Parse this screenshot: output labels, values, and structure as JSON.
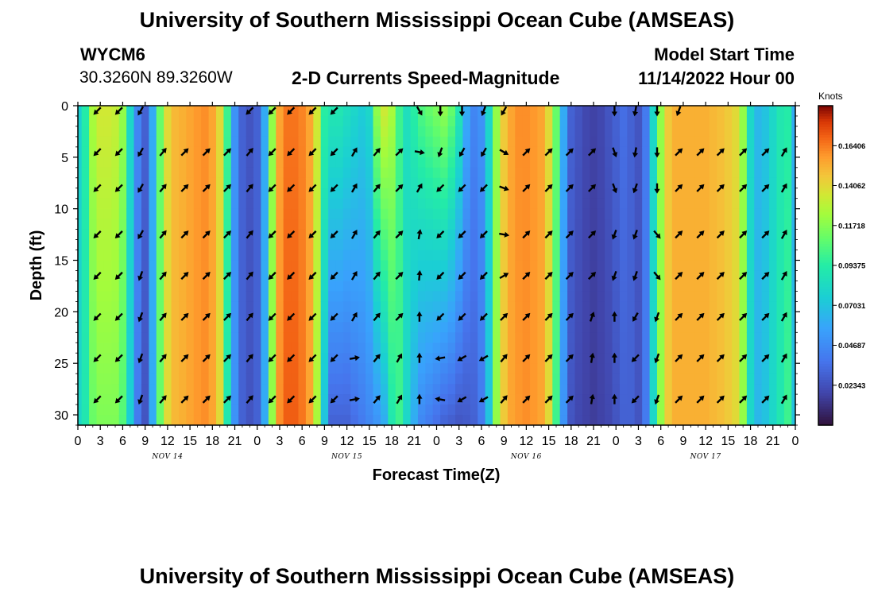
{
  "header": {
    "title": "University of Southern Mississippi Ocean Cube (AMSEAS)",
    "station_id": "WYCM6",
    "coordinates": "30.3260N  89.3260W",
    "plot_title": "2-D Currents Speed-Magnitude",
    "model_start_label": "Model Start Time",
    "model_start_value": "11/14/2022 Hour 00"
  },
  "footer": {
    "title": "University of Southern Mississippi Ocean Cube (AMSEAS)"
  },
  "chart_data": {
    "type": "heatmap",
    "title": "2-D Currents Speed-Magnitude",
    "xlabel": "Forecast Time(Z)",
    "ylabel": "Depth (ft)",
    "x_tick_labels": [
      "0",
      "3",
      "6",
      "9",
      "12",
      "15",
      "18",
      "21",
      "0",
      "3",
      "6",
      "9",
      "12",
      "15",
      "18",
      "21",
      "0",
      "3",
      "6",
      "9",
      "12",
      "15",
      "18",
      "21",
      "0",
      "3",
      "6",
      "9",
      "12",
      "15",
      "18",
      "21",
      "0"
    ],
    "x_range_hours": [
      0,
      96
    ],
    "date_labels": [
      {
        "label": "NOV 14",
        "hour": 12
      },
      {
        "label": "NOV 15",
        "hour": 36
      },
      {
        "label": "NOV 16",
        "hour": 60
      },
      {
        "label": "NOV 17",
        "hour": 84
      }
    ],
    "y_ticks": [
      0,
      5,
      10,
      15,
      20,
      25,
      30
    ],
    "y_tick_labels": [
      "0",
      "5",
      "10",
      "15",
      "20",
      "25",
      "30"
    ],
    "ylim": [
      0,
      31
    ],
    "y_inverted": true,
    "colorbar": {
      "title": "Knots",
      "vmin": 0.0,
      "vmax": 0.1875,
      "tick_values": [
        0.02343,
        0.04687,
        0.07031,
        0.09375,
        0.11718,
        0.14062,
        0.164
      ],
      "tick_labels": [
        "0.02343",
        "0.04687",
        "0.07031",
        "0.09375",
        "0.11718",
        "0.14062",
        "0.16406"
      ]
    },
    "speed_profile": {
      "description": "current speed (knots) at surface and at bottom, per forecast hour",
      "hours": [
        0,
        1,
        2,
        3,
        4,
        5,
        6,
        7,
        8,
        9,
        10,
        11,
        12,
        13,
        14,
        15,
        16,
        17,
        18,
        19,
        20,
        21,
        22,
        23,
        24,
        25,
        26,
        27,
        28,
        29,
        30,
        31,
        32,
        33,
        34,
        35,
        36,
        37,
        38,
        39,
        40,
        41,
        42,
        43,
        44,
        45,
        46,
        47,
        48,
        49,
        50,
        51,
        52,
        53,
        54,
        55,
        56,
        57,
        58,
        59,
        60,
        61,
        62,
        63,
        64,
        65,
        66,
        67,
        68,
        69,
        70,
        71,
        72,
        73,
        74,
        75,
        76,
        77,
        78,
        79,
        80,
        81,
        82,
        83,
        84,
        85,
        86,
        87,
        88,
        89,
        90,
        91,
        92,
        93,
        94,
        95,
        96
      ],
      "surface": [
        0.075,
        0.093,
        0.125,
        0.135,
        0.135,
        0.132,
        0.12,
        0.08,
        0.045,
        0.03,
        0.06,
        0.11,
        0.14,
        0.15,
        0.152,
        0.155,
        0.158,
        0.16,
        0.155,
        0.14,
        0.1,
        0.05,
        0.03,
        0.025,
        0.03,
        0.06,
        0.12,
        0.155,
        0.165,
        0.165,
        0.162,
        0.155,
        0.135,
        0.095,
        0.09,
        0.09,
        0.085,
        0.08,
        0.075,
        0.08,
        0.12,
        0.135,
        0.125,
        0.1,
        0.085,
        0.095,
        0.105,
        0.11,
        0.115,
        0.12,
        0.11,
        0.09,
        0.06,
        0.045,
        0.05,
        0.08,
        0.12,
        0.145,
        0.155,
        0.16,
        0.16,
        0.158,
        0.155,
        0.14,
        0.11,
        0.06,
        0.03,
        0.025,
        0.02,
        0.018,
        0.02,
        0.025,
        0.03,
        0.035,
        0.03,
        0.025,
        0.04,
        0.08,
        0.12,
        0.145,
        0.152,
        0.152,
        0.152,
        0.152,
        0.152,
        0.15,
        0.148,
        0.145,
        0.14,
        0.12,
        0.08,
        0.065,
        0.07,
        0.08,
        0.09,
        0.093,
        0.06
      ],
      "bottom": [
        0.08,
        0.09,
        0.11,
        0.115,
        0.115,
        0.115,
        0.105,
        0.075,
        0.04,
        0.025,
        0.06,
        0.11,
        0.14,
        0.15,
        0.152,
        0.155,
        0.158,
        0.16,
        0.155,
        0.14,
        0.09,
        0.05,
        0.03,
        0.025,
        0.03,
        0.06,
        0.12,
        0.16,
        0.17,
        0.17,
        0.165,
        0.155,
        0.125,
        0.07,
        0.03,
        0.03,
        0.03,
        0.035,
        0.04,
        0.045,
        0.05,
        0.06,
        0.09,
        0.1,
        0.08,
        0.06,
        0.045,
        0.04,
        0.035,
        0.03,
        0.028,
        0.025,
        0.027,
        0.03,
        0.04,
        0.07,
        0.12,
        0.145,
        0.155,
        0.158,
        0.16,
        0.158,
        0.155,
        0.14,
        0.1,
        0.05,
        0.025,
        0.02,
        0.018,
        0.016,
        0.018,
        0.02,
        0.025,
        0.03,
        0.03,
        0.025,
        0.04,
        0.08,
        0.12,
        0.145,
        0.152,
        0.152,
        0.152,
        0.152,
        0.152,
        0.15,
        0.148,
        0.145,
        0.14,
        0.12,
        0.08,
        0.065,
        0.07,
        0.08,
        0.09,
        0.1,
        0.07
      ]
    },
    "vectors": {
      "description": "current direction arrows, angle in degrees clockwise from north (0=north, 90=east, 180=south, 225=southwest, 45=northeast)",
      "depths": [
        0.5,
        4.5,
        8.0,
        12.5,
        16.5,
        20.5,
        24.5,
        28.5
      ],
      "columns": [
        {
          "hour": 2.6,
          "angles": [
            225,
            225,
            225,
            225,
            225,
            225,
            225,
            225
          ]
        },
        {
          "hour": 5.5,
          "angles": [
            225,
            225,
            225,
            225,
            225,
            225,
            225,
            225
          ]
        },
        {
          "hour": 8.4,
          "angles": [
            210,
            210,
            210,
            210,
            200,
            200,
            200,
            200
          ]
        },
        {
          "hour": 11.4,
          "angles": [
            null,
            40,
            40,
            40,
            40,
            40,
            40,
            40
          ]
        },
        {
          "hour": 14.3,
          "angles": [
            null,
            45,
            45,
            45,
            45,
            45,
            45,
            45
          ]
        },
        {
          "hour": 17.2,
          "angles": [
            null,
            45,
            45,
            45,
            45,
            45,
            45,
            45
          ]
        },
        {
          "hour": 20.0,
          "angles": [
            null,
            45,
            45,
            45,
            45,
            45,
            45,
            45
          ]
        },
        {
          "hour": 23.0,
          "angles": [
            225,
            40,
            40,
            40,
            40,
            40,
            40,
            40
          ]
        },
        {
          "hour": 26.0,
          "angles": [
            225,
            225,
            225,
            225,
            225,
            225,
            225,
            225
          ]
        },
        {
          "hour": 28.5,
          "angles": [
            225,
            225,
            225,
            225,
            225,
            225,
            225,
            225
          ]
        },
        {
          "hour": 31.4,
          "angles": [
            225,
            225,
            225,
            225,
            225,
            225,
            225,
            225
          ]
        },
        {
          "hour": 34.3,
          "angles": [
            225,
            225,
            225,
            225,
            225,
            225,
            225,
            225
          ]
        },
        {
          "hour": 37.0,
          "angles": [
            null,
            30,
            30,
            30,
            30,
            30,
            80,
            80
          ]
        },
        {
          "hour": 40.0,
          "angles": [
            null,
            40,
            40,
            40,
            40,
            40,
            40,
            40
          ]
        },
        {
          "hour": 43.0,
          "angles": [
            null,
            45,
            45,
            45,
            45,
            45,
            30,
            30
          ]
        },
        {
          "hour": 45.7,
          "angles": [
            150,
            100,
            30,
            10,
            5,
            0,
            0,
            0
          ]
        },
        {
          "hour": 48.5,
          "angles": [
            180,
            200,
            225,
            225,
            225,
            225,
            260,
            280
          ]
        },
        {
          "hour": 51.4,
          "angles": [
            180,
            210,
            225,
            225,
            225,
            225,
            240,
            240
          ]
        },
        {
          "hour": 54.3,
          "angles": [
            200,
            210,
            225,
            225,
            225,
            225,
            240,
            240
          ]
        },
        {
          "hour": 57.0,
          "angles": [
            210,
            120,
            110,
            100,
            60,
            45,
            40,
            40
          ]
        },
        {
          "hour": 60.0,
          "angles": [
            null,
            45,
            45,
            45,
            45,
            45,
            45,
            45
          ]
        },
        {
          "hour": 63.0,
          "angles": [
            null,
            45,
            45,
            45,
            45,
            45,
            45,
            45
          ]
        },
        {
          "hour": 65.8,
          "angles": [
            null,
            45,
            45,
            45,
            45,
            45,
            45,
            45
          ]
        },
        {
          "hour": 68.8,
          "angles": [
            null,
            45,
            45,
            45,
            45,
            20,
            10,
            10
          ]
        },
        {
          "hour": 71.8,
          "angles": [
            180,
            160,
            160,
            200,
            200,
            0,
            0,
            0
          ]
        },
        {
          "hour": 74.6,
          "angles": [
            190,
            190,
            200,
            200,
            200,
            210,
            225,
            225
          ]
        },
        {
          "hour": 77.5,
          "angles": [
            180,
            180,
            180,
            140,
            140,
            200,
            200,
            200
          ]
        },
        {
          "hour": 80.4,
          "angles": [
            200,
            45,
            45,
            45,
            45,
            45,
            45,
            45
          ]
        },
        {
          "hour": 83.3,
          "angles": [
            null,
            45,
            45,
            45,
            45,
            45,
            45,
            45
          ]
        },
        {
          "hour": 86.0,
          "angles": [
            null,
            45,
            45,
            45,
            45,
            45,
            45,
            45
          ]
        },
        {
          "hour": 89.0,
          "angles": [
            null,
            45,
            45,
            45,
            45,
            45,
            45,
            45
          ]
        },
        {
          "hour": 92.0,
          "angles": [
            null,
            45,
            45,
            45,
            45,
            45,
            45,
            45
          ]
        },
        {
          "hour": 94.5,
          "angles": [
            null,
            30,
            30,
            30,
            30,
            30,
            30,
            30
          ]
        }
      ]
    }
  }
}
